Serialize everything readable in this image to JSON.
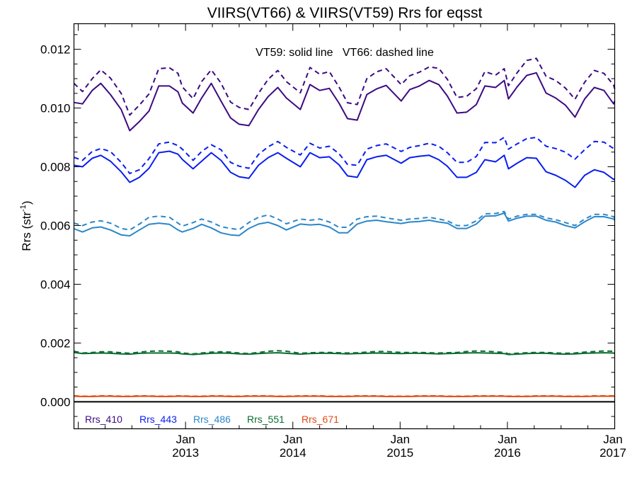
{
  "chart_data": {
    "type": "line",
    "title": "VIIRS(VT66) & VIIRS(VT59)  Rrs for eqsst",
    "annotation": "VT59: solid line   VT66: dashed line",
    "xlabel": "",
    "ylabel": "Rrs (str",
    "ylabel_sup": "-1",
    "ylabel_close": ")",
    "xlim": [
      2011.96,
      2017.0
    ],
    "ylim": [
      -0.00092,
      0.01287
    ],
    "grid": false,
    "legend_placement": "bottom-left",
    "yticks": [
      {
        "value": 0.0,
        "label": "0.000"
      },
      {
        "value": 0.002,
        "label": "0.002"
      },
      {
        "value": 0.004,
        "label": "0.004"
      },
      {
        "value": 0.006,
        "label": "0.006"
      },
      {
        "value": 0.008,
        "label": "0.008"
      },
      {
        "value": 0.01,
        "label": "0.010"
      },
      {
        "value": 0.012,
        "label": "0.012"
      }
    ],
    "xticks": [
      {
        "value": 2013.0,
        "month": "Jan",
        "year": "2013"
      },
      {
        "value": 2014.0,
        "month": "Jan",
        "year": "2014"
      },
      {
        "value": 2015.0,
        "month": "Jan",
        "year": "2015"
      },
      {
        "value": 2016.0,
        "month": "Jan",
        "year": "2016"
      },
      {
        "value": 2017.0,
        "month": "Jan",
        "year": "2017"
      }
    ],
    "zero_line": 0.0,
    "x": [
      2011.96,
      2012.04,
      2012.13,
      2012.21,
      2012.3,
      2012.4,
      2012.48,
      2012.57,
      2012.66,
      2012.75,
      2012.85,
      2012.93,
      2012.97,
      2013.07,
      2013.15,
      2013.24,
      2013.33,
      2013.42,
      2013.5,
      2013.59,
      2013.68,
      2013.77,
      2013.86,
      2013.94,
      2014.07,
      2014.16,
      2014.25,
      2014.34,
      2014.43,
      2014.51,
      2014.6,
      2014.69,
      2014.78,
      2014.87,
      2015.01,
      2015.09,
      2015.18,
      2015.27,
      2015.36,
      2015.44,
      2015.53,
      2015.62,
      2015.71,
      2015.79,
      2015.89,
      2015.97,
      2016.01,
      2016.09,
      2016.18,
      2016.27,
      2016.36,
      2016.45,
      2016.54,
      2016.63,
      2016.72,
      2016.81,
      2016.9,
      2016.99,
      2017.0
    ],
    "series": [
      {
        "name": "Rrs_410",
        "sensor": "VT59",
        "style": "solid",
        "color": "#3d0a82",
        "values": [
          0.01019,
          0.01014,
          0.0106,
          0.01084,
          0.01046,
          0.00995,
          0.00923,
          0.00954,
          0.0099,
          0.01075,
          0.01075,
          0.01055,
          0.01017,
          0.00983,
          0.01034,
          0.01084,
          0.01024,
          0.00966,
          0.00945,
          0.0094,
          0.00995,
          0.01039,
          0.0107,
          0.01034,
          0.00995,
          0.0108,
          0.0106,
          0.01067,
          0.01017,
          0.00964,
          0.00959,
          0.01046,
          0.01065,
          0.01077,
          0.01024,
          0.01063,
          0.01075,
          0.01094,
          0.0108,
          0.01041,
          0.00983,
          0.00986,
          0.01012,
          0.01075,
          0.0107,
          0.01094,
          0.01031,
          0.01072,
          0.01111,
          0.0112,
          0.01051,
          0.01034,
          0.0101,
          0.00969,
          0.01031,
          0.0107,
          0.0106,
          0.01014,
          0.01024
        ]
      },
      {
        "name": "Rrs_410",
        "sensor": "VT66",
        "style": "dashed",
        "color": "#3d0a82",
        "values": [
          0.01084,
          0.01056,
          0.011,
          0.0113,
          0.01102,
          0.0105,
          0.00976,
          0.0101,
          0.01048,
          0.01134,
          0.01137,
          0.01118,
          0.01072,
          0.01032,
          0.0109,
          0.0113,
          0.01085,
          0.0102,
          0.01002,
          0.00995,
          0.0105,
          0.01098,
          0.01128,
          0.0109,
          0.01052,
          0.01138,
          0.01115,
          0.01124,
          0.01072,
          0.01018,
          0.01012,
          0.011,
          0.01123,
          0.01134,
          0.0108,
          0.0111,
          0.01122,
          0.0114,
          0.01135,
          0.01098,
          0.01036,
          0.0104,
          0.01066,
          0.01124,
          0.01112,
          0.01134,
          0.01076,
          0.0112,
          0.01162,
          0.01169,
          0.01108,
          0.01094,
          0.01068,
          0.0103,
          0.01088,
          0.01128,
          0.01118,
          0.01078,
          0.01065
        ]
      },
      {
        "name": "Rrs_443",
        "sensor": "VT59",
        "style": "solid",
        "color": "#0a1ef0",
        "values": [
          0.00805,
          0.008,
          0.00829,
          0.00839,
          0.00819,
          0.00783,
          0.00747,
          0.00764,
          0.00795,
          0.00848,
          0.00853,
          0.00843,
          0.00825,
          0.00793,
          0.00819,
          0.00848,
          0.00822,
          0.00781,
          0.00766,
          0.00761,
          0.00805,
          0.00831,
          0.00848,
          0.00829,
          0.008,
          0.00848,
          0.00831,
          0.00834,
          0.00807,
          0.00769,
          0.00764,
          0.00824,
          0.00834,
          0.00839,
          0.00812,
          0.00831,
          0.00836,
          0.00839,
          0.00824,
          0.00802,
          0.00764,
          0.00764,
          0.00781,
          0.00824,
          0.00817,
          0.00839,
          0.00793,
          0.00812,
          0.00831,
          0.00829,
          0.00783,
          0.00771,
          0.00754,
          0.0073,
          0.00771,
          0.0079,
          0.00781,
          0.00757,
          0.00759
        ]
      },
      {
        "name": "Rrs_443",
        "sensor": "VT66",
        "style": "dashed",
        "color": "#0a1ef0",
        "values": [
          0.00832,
          0.00822,
          0.00852,
          0.00862,
          0.00852,
          0.00815,
          0.00777,
          0.0079,
          0.00828,
          0.00878,
          0.00884,
          0.00872,
          0.0086,
          0.00822,
          0.00852,
          0.00875,
          0.00858,
          0.00815,
          0.00802,
          0.00795,
          0.00842,
          0.00868,
          0.00886,
          0.00866,
          0.0084,
          0.0088,
          0.00864,
          0.0087,
          0.00845,
          0.00808,
          0.00805,
          0.0086,
          0.00872,
          0.00878,
          0.00852,
          0.00866,
          0.00872,
          0.0088,
          0.0087,
          0.00848,
          0.00815,
          0.00815,
          0.00835,
          0.00883,
          0.00882,
          0.009,
          0.0086,
          0.00878,
          0.00896,
          0.009,
          0.0087,
          0.00862,
          0.0085,
          0.00826,
          0.00858,
          0.00886,
          0.00884,
          0.00862,
          0.00858
        ]
      },
      {
        "name": "Rrs_486",
        "sensor": "VT59",
        "style": "solid",
        "color": "#2b87c9",
        "values": [
          0.00589,
          0.00578,
          0.00592,
          0.00595,
          0.00585,
          0.00568,
          0.00565,
          0.00585,
          0.00604,
          0.00608,
          0.00604,
          0.00585,
          0.00578,
          0.0059,
          0.00604,
          0.00592,
          0.00575,
          0.00568,
          0.00566,
          0.0059,
          0.00605,
          0.00611,
          0.006,
          0.00585,
          0.00605,
          0.00602,
          0.00604,
          0.00595,
          0.00575,
          0.00575,
          0.00605,
          0.00615,
          0.00618,
          0.00613,
          0.00607,
          0.00612,
          0.00614,
          0.00618,
          0.00612,
          0.00608,
          0.0059,
          0.0059,
          0.00605,
          0.00632,
          0.00633,
          0.00642,
          0.00615,
          0.00625,
          0.00632,
          0.00632,
          0.00618,
          0.00612,
          0.006,
          0.00592,
          0.00613,
          0.0063,
          0.0063,
          0.00622,
          0.00618
        ]
      },
      {
        "name": "Rrs_486",
        "sensor": "VT66",
        "style": "dashed",
        "color": "#2b87c9",
        "values": [
          0.00608,
          0.006,
          0.00612,
          0.00616,
          0.00608,
          0.0059,
          0.00585,
          0.00605,
          0.00628,
          0.00632,
          0.00628,
          0.00608,
          0.00598,
          0.0061,
          0.00622,
          0.00612,
          0.00596,
          0.0059,
          0.00586,
          0.0061,
          0.00628,
          0.00636,
          0.00622,
          0.00606,
          0.00622,
          0.00618,
          0.00622,
          0.00612,
          0.00594,
          0.00594,
          0.00622,
          0.0063,
          0.00632,
          0.00626,
          0.00618,
          0.00622,
          0.00624,
          0.00628,
          0.00622,
          0.00616,
          0.006,
          0.006,
          0.00616,
          0.0064,
          0.00641,
          0.00648,
          0.00622,
          0.00632,
          0.00638,
          0.00638,
          0.00626,
          0.0062,
          0.0061,
          0.006,
          0.00622,
          0.00638,
          0.00638,
          0.0063,
          0.00626
        ]
      },
      {
        "name": "Rrs_551",
        "sensor": "VT59",
        "style": "solid",
        "color": "#0b6b32",
        "values": [
          0.00168,
          0.00164,
          0.00165,
          0.00166,
          0.00165,
          0.00163,
          0.00162,
          0.00165,
          0.00166,
          0.00166,
          0.00166,
          0.00165,
          0.00163,
          0.00161,
          0.00163,
          0.00165,
          0.00166,
          0.00165,
          0.00163,
          0.00162,
          0.00164,
          0.00166,
          0.00167,
          0.00165,
          0.00162,
          0.00164,
          0.00165,
          0.00165,
          0.00164,
          0.00163,
          0.00164,
          0.00165,
          0.00166,
          0.00165,
          0.00164,
          0.00165,
          0.00165,
          0.00164,
          0.00163,
          0.00164,
          0.00165,
          0.00166,
          0.00167,
          0.00166,
          0.00165,
          0.00164,
          0.00161,
          0.00162,
          0.00164,
          0.00165,
          0.00165,
          0.00163,
          0.00162,
          0.00163,
          0.00165,
          0.00166,
          0.00167,
          0.00166,
          0.00164
        ]
      },
      {
        "name": "Rrs_551",
        "sensor": "VT66",
        "style": "dashed",
        "color": "#0b6b32",
        "values": [
          0.00172,
          0.00166,
          0.00168,
          0.0017,
          0.0017,
          0.00167,
          0.00165,
          0.00169,
          0.00172,
          0.00173,
          0.00172,
          0.0017,
          0.00166,
          0.00163,
          0.00166,
          0.00169,
          0.0017,
          0.00169,
          0.00166,
          0.00164,
          0.00168,
          0.00172,
          0.00174,
          0.00172,
          0.00165,
          0.00167,
          0.00168,
          0.00168,
          0.00167,
          0.00166,
          0.00167,
          0.00169,
          0.00171,
          0.00171,
          0.00168,
          0.00168,
          0.00168,
          0.00167,
          0.00166,
          0.00167,
          0.00168,
          0.00171,
          0.00173,
          0.00172,
          0.0017,
          0.00168,
          0.00163,
          0.00165,
          0.00167,
          0.00168,
          0.00168,
          0.00166,
          0.00165,
          0.00166,
          0.00169,
          0.00171,
          0.00173,
          0.00172,
          0.00169
        ]
      },
      {
        "name": "Rrs_671",
        "sensor": "VT59",
        "style": "solid",
        "color": "#e04a12",
        "values": [
          0.00019,
          0.00018,
          0.00018,
          0.00019,
          0.00019,
          0.00018,
          0.00018,
          0.00019,
          0.00019,
          0.00018,
          0.00018,
          0.00019,
          0.00019,
          0.00018,
          0.00018,
          0.00019,
          0.00019,
          0.00018,
          0.00018,
          0.00019,
          0.00019,
          0.00019,
          0.00018,
          0.00018,
          0.00019,
          0.00019,
          0.00019,
          0.00018,
          0.00018,
          0.00018,
          0.00019,
          0.00019,
          0.00019,
          0.00018,
          0.00018,
          0.00018,
          0.00019,
          0.00019,
          0.00019,
          0.00018,
          0.00018,
          0.00018,
          0.00019,
          0.00019,
          0.00019,
          0.00019,
          0.00018,
          0.00018,
          0.00018,
          0.00019,
          0.00019,
          0.00019,
          0.00018,
          0.00018,
          0.00018,
          0.00019,
          0.00019,
          0.00019,
          0.00019
        ]
      },
      {
        "name": "Rrs_671",
        "sensor": "VT66",
        "style": "dashed",
        "color": "#e04a12",
        "values": [
          0.0002,
          0.00019,
          0.00019,
          0.0002,
          0.0002,
          0.00019,
          0.00019,
          0.0002,
          0.0002,
          0.00019,
          0.00019,
          0.0002,
          0.0002,
          0.00019,
          0.00019,
          0.0002,
          0.0002,
          0.00019,
          0.00019,
          0.0002,
          0.0002,
          0.0002,
          0.00019,
          0.00019,
          0.0002,
          0.0002,
          0.0002,
          0.00019,
          0.00019,
          0.00019,
          0.0002,
          0.0002,
          0.0002,
          0.00019,
          0.00019,
          0.00019,
          0.0002,
          0.0002,
          0.0002,
          0.00019,
          0.00019,
          0.00019,
          0.0002,
          0.0002,
          0.0002,
          0.0002,
          0.00019,
          0.00019,
          0.00019,
          0.0002,
          0.0002,
          0.0002,
          0.00019,
          0.00019,
          0.00019,
          0.0002,
          0.0002,
          0.0002,
          0.0002
        ]
      }
    ],
    "legend": [
      {
        "label": "Rrs_410",
        "color": "#3d0a82"
      },
      {
        "label": "Rrs_443",
        "color": "#0a1ef0"
      },
      {
        "label": "Rrs_486",
        "color": "#2b87c9"
      },
      {
        "label": "Rrs_551",
        "color": "#0b6b32"
      },
      {
        "label": "Rrs_671",
        "color": "#e04a12"
      }
    ]
  }
}
